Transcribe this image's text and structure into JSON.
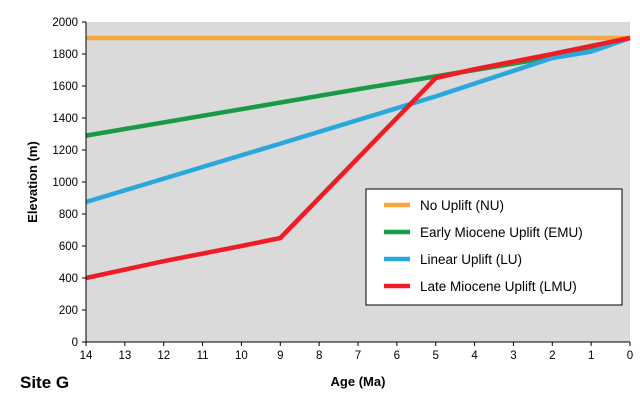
{
  "chart_data": {
    "type": "line",
    "title": "",
    "annotation": "Site G",
    "xlabel": "Age (Ma)",
    "ylabel": "Elevation (m)",
    "x_reversed": true,
    "xlim": [
      14,
      0
    ],
    "ylim": [
      0,
      2000
    ],
    "x_ticks": [
      14,
      13,
      12,
      11,
      10,
      9,
      8,
      7,
      6,
      5,
      4,
      3,
      2,
      1,
      0
    ],
    "y_ticks": [
      0,
      200,
      400,
      600,
      800,
      1000,
      1200,
      1400,
      1600,
      1800,
      2000
    ],
    "grid": false,
    "plot_background": "#dadada",
    "legend_position": "lower-right",
    "series": [
      {
        "name": "No Uplift (NU)",
        "color": "#f7a740",
        "points": [
          [
            14,
            1900
          ],
          [
            0,
            1900
          ]
        ]
      },
      {
        "name": "Early Miocene Uplift (EMU)",
        "color": "#1a9a46",
        "points": [
          [
            14,
            1290
          ],
          [
            10,
            1455
          ],
          [
            7,
            1580
          ],
          [
            5,
            1660
          ],
          [
            2,
            1780
          ],
          [
            1,
            1840
          ],
          [
            0,
            1900
          ]
        ]
      },
      {
        "name": "Linear Uplift (LU)",
        "color": "#2aa7dc",
        "points": [
          [
            14,
            875
          ],
          [
            9,
            1240
          ],
          [
            5,
            1535
          ],
          [
            2,
            1775
          ],
          [
            1,
            1815
          ],
          [
            0,
            1900
          ]
        ]
      },
      {
        "name": "Late Miocene Uplift (LMU)",
        "color": "#ee1c24",
        "points": [
          [
            14,
            400
          ],
          [
            12,
            505
          ],
          [
            10,
            600
          ],
          [
            9,
            650
          ],
          [
            5,
            1650
          ],
          [
            4,
            1705
          ],
          [
            2,
            1800
          ],
          [
            1,
            1850
          ],
          [
            0,
            1900
          ]
        ]
      }
    ]
  }
}
